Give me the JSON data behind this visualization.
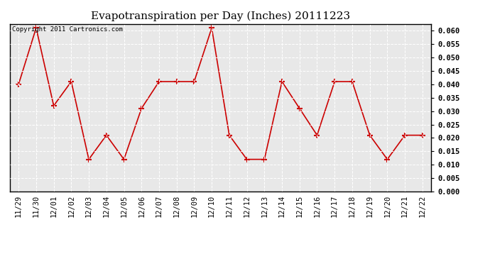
{
  "title": "Evapotranspiration per Day (Inches) 20111223",
  "copyright_text": "Copyright 2011 Cartronics.com",
  "x_labels": [
    "11/29",
    "11/30",
    "12/01",
    "12/02",
    "12/03",
    "12/04",
    "12/05",
    "12/06",
    "12/07",
    "12/08",
    "12/09",
    "12/10",
    "12/11",
    "12/12",
    "12/13",
    "12/14",
    "12/15",
    "12/16",
    "12/17",
    "12/18",
    "12/19",
    "12/20",
    "12/21",
    "12/22"
  ],
  "y_values": [
    0.04,
    0.061,
    0.032,
    0.041,
    0.012,
    0.021,
    0.012,
    0.031,
    0.041,
    0.041,
    0.041,
    0.061,
    0.021,
    0.012,
    0.012,
    0.041,
    0.031,
    0.021,
    0.041,
    0.041,
    0.021,
    0.012,
    0.021,
    0.021
  ],
  "line_color": "#cc0000",
  "marker": "+",
  "marker_size": 6,
  "marker_edge_width": 1.5,
  "line_width": 1.2,
  "ylim": [
    0.0,
    0.0625
  ],
  "yticks": [
    0.0,
    0.005,
    0.01,
    0.015,
    0.02,
    0.025,
    0.03,
    0.035,
    0.04,
    0.045,
    0.05,
    0.055,
    0.06
  ],
  "background_color": "#ffffff",
  "plot_background_color": "#e8e8e8",
  "grid_color": "#cccccc",
  "title_fontsize": 11,
  "copyright_fontsize": 6.5,
  "tick_fontsize": 7.5,
  "ytick_fontweight": "bold"
}
